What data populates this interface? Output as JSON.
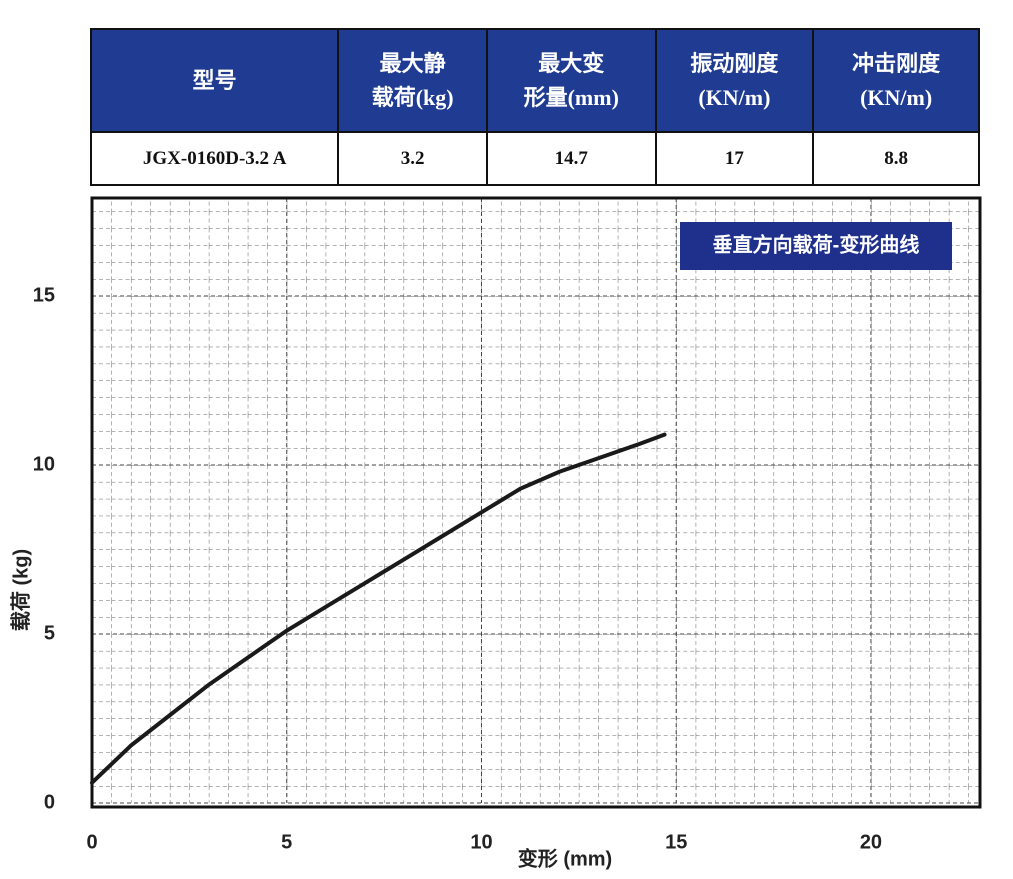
{
  "table": {
    "header": [
      [
        "型号"
      ],
      [
        "最大静",
        "载荷(kg)"
      ],
      [
        "最大变",
        "形量(mm)"
      ],
      [
        "振动刚度",
        "(KN/m)"
      ],
      [
        "冲击刚度",
        "(KN/m)"
      ]
    ],
    "rows": [
      [
        "JGX-0160D-3.2 A",
        "3.2",
        "14.7",
        "17",
        "8.8"
      ]
    ]
  },
  "chart_data": {
    "type": "line",
    "title": "垂直方向载荷-变形曲线",
    "x_label": "变形 (mm)",
    "y_label": "载荷 (kg)",
    "x": [
      0,
      1,
      2,
      3,
      4,
      5,
      6,
      7,
      8,
      9,
      10,
      11,
      12,
      13,
      14,
      14.7
    ],
    "series": [
      {
        "name": "垂直方向载荷-变形曲线",
        "color": "#1a1a1a",
        "values": [
          0.6,
          1.7,
          2.6,
          3.5,
          4.3,
          5.1,
          5.8,
          6.5,
          7.2,
          7.9,
          8.6,
          9.3,
          9.8,
          10.2,
          10.6,
          10.9
        ]
      }
    ],
    "xlim": [
      0,
      22.8
    ],
    "ylim": [
      0,
      17.9
    ],
    "xticks": [
      0,
      5,
      10,
      15,
      20
    ],
    "yticks": [
      0,
      5,
      10,
      15
    ],
    "grid": true
  }
}
